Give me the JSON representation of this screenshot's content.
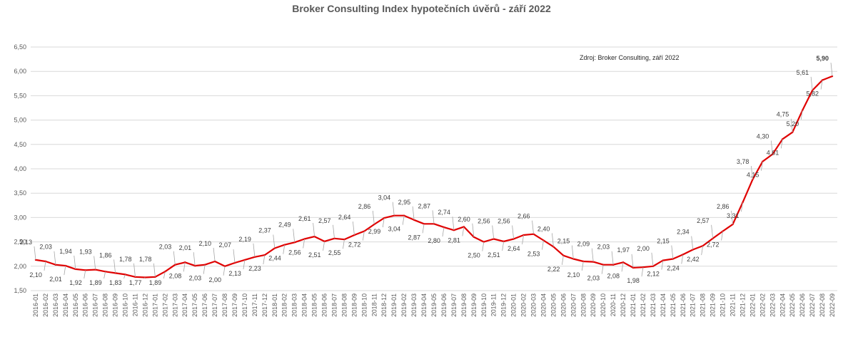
{
  "chart_data": {
    "type": "line",
    "title": "Broker Consulting Index hypotečních úvěrů - září 2022",
    "annotation": "Zdroj: Broker Consulting, září 2022",
    "xlabel": "",
    "ylabel": "",
    "ylim": [
      1.5,
      6.5
    ],
    "yticks": [
      "1,50",
      "2,00",
      "2,50",
      "3,00",
      "3,50",
      "4,00",
      "4,50",
      "5,00",
      "5,50",
      "6,00",
      "6,50"
    ],
    "grid": true,
    "legend": "none",
    "line_color": "#e00000",
    "highlight_color": "#e00000",
    "categories": [
      "2016-01",
      "2016-02",
      "2016-03",
      "2016-04",
      "2016-05",
      "2016-06",
      "2016-07",
      "2016-08",
      "2016-09",
      "2016-10",
      "2016-11",
      "2016-12",
      "2017-01",
      "2017-02",
      "2017-03",
      "2017-04",
      "2017-05",
      "2017-06",
      "2017-07",
      "2017-08",
      "2017-09",
      "2017-10",
      "2017-11",
      "2017-12",
      "2018-01",
      "2018-02",
      "2018-03",
      "2018-04",
      "2018-05",
      "2018-06",
      "2018-07",
      "2018-08",
      "2018-09",
      "2018-10",
      "2018-11",
      "2018-12",
      "2019-01",
      "2019-02",
      "2019-03",
      "2019-04",
      "2019-05",
      "2019-06",
      "2019-07",
      "2019-08",
      "2019-09",
      "2019-10",
      "2019-11",
      "2019-12",
      "2020-01",
      "2020-02",
      "2020-03",
      "2020-04",
      "2020-05",
      "2020-06",
      "2020-07",
      "2020-08",
      "2020-09",
      "2020-10",
      "2020-11",
      "2020-12",
      "2021-01",
      "2021-02",
      "2021-03",
      "2021-04",
      "2021-05",
      "2021-06",
      "2021-07",
      "2021-08",
      "2021-09",
      "2021-10",
      "2021-11",
      "2021-12",
      "2022-01",
      "2022-02",
      "2022-03",
      "2022-04",
      "2022-05",
      "2022-06",
      "2022-07",
      "2022-08",
      "2022-09"
    ],
    "values": [
      2.13,
      2.1,
      2.03,
      2.01,
      1.94,
      1.92,
      1.93,
      1.89,
      1.86,
      1.83,
      1.78,
      1.77,
      1.78,
      1.89,
      2.03,
      2.08,
      2.01,
      2.03,
      2.1,
      2.0,
      2.07,
      2.13,
      2.19,
      2.23,
      2.37,
      2.44,
      2.49,
      2.56,
      2.61,
      2.51,
      2.57,
      2.55,
      2.64,
      2.72,
      2.86,
      2.99,
      3.04,
      3.04,
      2.95,
      2.87,
      2.87,
      2.8,
      2.74,
      2.81,
      2.6,
      2.5,
      2.56,
      2.51,
      2.56,
      2.64,
      2.66,
      2.53,
      2.4,
      2.22,
      2.15,
      2.1,
      2.09,
      2.03,
      2.03,
      2.08,
      1.97,
      1.98,
      2.0,
      2.12,
      2.15,
      2.24,
      2.34,
      2.42,
      2.57,
      2.72,
      2.86,
      3.31,
      3.78,
      4.15,
      4.3,
      4.61,
      4.75,
      5.2,
      5.61,
      5.82,
      5.9
    ],
    "data_labels": [
      "2,13",
      "2,10",
      "2,03",
      "2,01",
      "1,94",
      "1,92",
      "1,93",
      "1,89",
      "1,86",
      "1,83",
      "1,78",
      "1,77",
      "1,78",
      "1,89",
      "2,03",
      "2,08",
      "2,01",
      "2,03",
      "2,10",
      "2,00",
      "2,07",
      "2,13",
      "2,19",
      "2,23",
      "2,37",
      "2,44",
      "2,49",
      "2,56",
      "2,61",
      "2,51",
      "2,57",
      "2,55",
      "2,64",
      "2,72",
      "2,86",
      "2,99",
      "3,04",
      "3,04",
      "2,95",
      "2,87",
      "2,87",
      "2,80",
      "2,74",
      "2,81",
      "2,60",
      "2,50",
      "2,56",
      "2,51",
      "2,56",
      "2,64",
      "2,66",
      "2,53",
      "2,40",
      "2,22",
      "2,15",
      "2,10",
      "2,09",
      "2,03",
      "2,03",
      "2,08",
      "1,97",
      "1,98",
      "2,00",
      "2,12",
      "2,15",
      "2,24",
      "2,34",
      "2,42",
      "2,57",
      "2,72",
      "2,86",
      "3,31",
      "3,78",
      "4,15",
      "4,30",
      "4,61",
      "4,75",
      "5,20",
      "5,61",
      "5,82",
      "5,90"
    ]
  }
}
